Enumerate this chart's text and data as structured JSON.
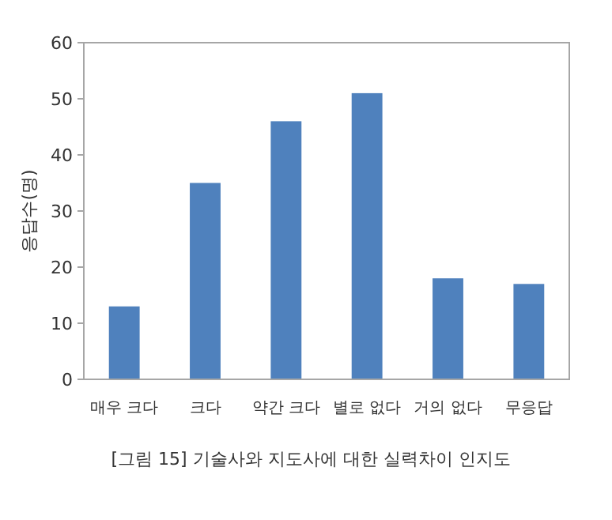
{
  "chart_data": {
    "type": "bar",
    "categories": [
      "매우 크다",
      "크다",
      "약간 크다",
      "별로 없다",
      "거의 없다",
      "무응답"
    ],
    "values": [
      13,
      35,
      46,
      51,
      18,
      17
    ],
    "color": "#4f81bd",
    "ylabel": "응답수(명)",
    "ylim": [
      0,
      60
    ],
    "yticks": [
      0,
      10,
      20,
      30,
      40,
      50,
      60
    ],
    "grid": false,
    "annotations": [
      "[그림 15]  기술사와 지도사에 대한 실력차이 인지도"
    ]
  }
}
